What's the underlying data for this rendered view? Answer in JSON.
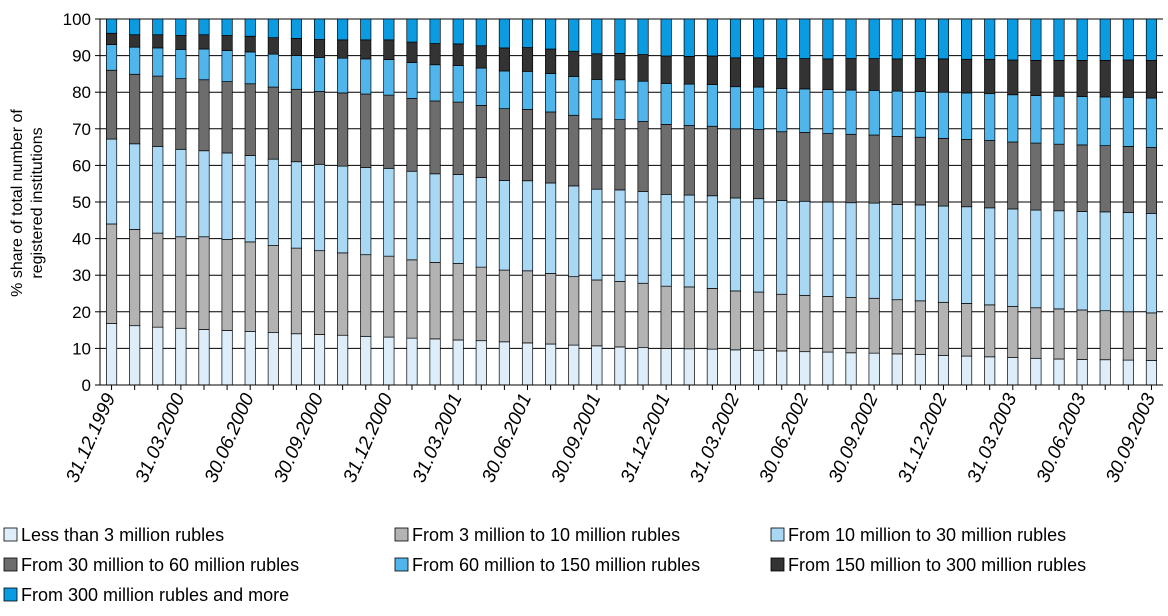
{
  "chart_data": {
    "type": "bar",
    "stacked": true,
    "title": "",
    "ylabel_lines": [
      "% share of total number of",
      "registered institutions"
    ],
    "xlabel": "",
    "ylim": [
      0,
      100
    ],
    "y_ticks": [
      0,
      10,
      20,
      30,
      40,
      50,
      60,
      70,
      80,
      90,
      100
    ],
    "grid": "horizontal",
    "legend_position": "bottom",
    "x_ticks": [
      "31.12.1999",
      "31.03.2000",
      "30.06.2000",
      "30.09.2000",
      "31.12.2000",
      "31.03.2001",
      "30.06.2001",
      "30.09.2001",
      "31.12.2001",
      "31.03.2002",
      "30.06.2002",
      "30.09.2002",
      "31.12.2002",
      "31.03.2003",
      "30.06.2003",
      "30.09.2003"
    ],
    "bar_count": 46,
    "series": [
      {
        "name": "Less than 3 million rubles",
        "color": "#ddeefa",
        "values": [
          16.8,
          16.2,
          15.8,
          15.5,
          15.2,
          14.9,
          14.6,
          14.3,
          14.0,
          13.8,
          13.6,
          13.3,
          13.1,
          12.8,
          12.6,
          12.3,
          12.1,
          11.8,
          11.5,
          11.2,
          10.9,
          10.7,
          10.4,
          10.2,
          10.0,
          9.9,
          9.8,
          9.6,
          9.5,
          9.3,
          9.1,
          9.0,
          8.8,
          8.7,
          8.5,
          8.3,
          8.1,
          7.9,
          7.7,
          7.5,
          7.3,
          7.1,
          7.0,
          6.9,
          6.8,
          6.7
        ]
      },
      {
        "name": "From 3 million to 10 million rubles",
        "color": "#b3b3b3",
        "values": [
          27.2,
          26.3,
          25.7,
          25.0,
          25.3,
          24.9,
          24.5,
          23.8,
          23.4,
          22.9,
          22.5,
          22.3,
          22.1,
          21.4,
          20.9,
          20.9,
          20.1,
          19.6,
          19.7,
          19.3,
          18.7,
          18.0,
          17.9,
          17.6,
          17.0,
          16.9,
          16.6,
          16.1,
          15.9,
          15.5,
          15.4,
          15.2,
          15.1,
          15.0,
          14.8,
          14.7,
          14.5,
          14.4,
          14.2,
          14.0,
          13.8,
          13.7,
          13.5,
          13.4,
          13.2,
          13.0
        ]
      },
      {
        "name": "From 10 million to 30 million rubles",
        "color": "#a9d8f5",
        "values": [
          23.2,
          23.4,
          23.7,
          23.9,
          23.5,
          23.6,
          23.6,
          23.6,
          23.6,
          23.6,
          23.7,
          23.8,
          24.0,
          24.2,
          24.2,
          24.3,
          24.5,
          24.5,
          24.6,
          24.7,
          24.8,
          24.8,
          25.0,
          25.1,
          25.1,
          25.1,
          25.3,
          25.4,
          25.5,
          25.6,
          25.7,
          25.8,
          25.9,
          26.0,
          26.0,
          26.2,
          26.3,
          26.4,
          26.5,
          26.6,
          26.7,
          26.8,
          26.9,
          27.0,
          27.1,
          27.2
        ]
      },
      {
        "name": "From 30 million to 60 million rubles",
        "color": "#6d6d6d",
        "values": [
          18.8,
          19.0,
          19.2,
          19.3,
          19.4,
          19.5,
          19.6,
          19.7,
          19.8,
          19.9,
          20.0,
          20.1,
          20.0,
          19.9,
          19.9,
          19.8,
          19.7,
          19.6,
          19.5,
          19.4,
          19.3,
          19.2,
          19.2,
          19.1,
          19.1,
          19.0,
          19.0,
          18.9,
          18.9,
          18.8,
          18.8,
          18.7,
          18.7,
          18.6,
          18.6,
          18.5,
          18.5,
          18.4,
          18.4,
          18.3,
          18.3,
          18.2,
          18.2,
          18.1,
          18.1,
          18.0
        ]
      },
      {
        "name": "From 60 million to 150 million rubles",
        "color": "#4fb5ea",
        "values": [
          7.0,
          7.4,
          7.7,
          8.0,
          8.4,
          8.5,
          8.7,
          9.0,
          9.2,
          9.3,
          9.5,
          9.6,
          9.7,
          9.8,
          9.9,
          10.0,
          10.2,
          10.3,
          10.4,
          10.5,
          10.6,
          10.8,
          10.9,
          11.0,
          11.2,
          11.3,
          11.4,
          11.5,
          11.6,
          11.8,
          11.9,
          12.0,
          12.1,
          12.2,
          12.4,
          12.5,
          12.6,
          12.7,
          12.8,
          12.9,
          13.0,
          13.1,
          13.2,
          13.3,
          13.4,
          13.5
        ]
      },
      {
        "name": "From 150 million to 300 million rubles",
        "color": "#333333",
        "values": [
          3.1,
          3.4,
          3.6,
          3.8,
          3.9,
          4.1,
          4.3,
          4.5,
          4.7,
          4.9,
          5.0,
          5.2,
          5.4,
          5.6,
          5.8,
          5.9,
          6.1,
          6.3,
          6.5,
          6.7,
          6.9,
          7.0,
          7.2,
          7.3,
          7.5,
          7.6,
          7.8,
          7.9,
          8.0,
          8.2,
          8.3,
          8.4,
          8.6,
          8.7,
          8.8,
          9.0,
          9.1,
          9.2,
          9.4,
          9.5,
          9.6,
          9.8,
          9.9,
          10.0,
          10.2,
          10.3
        ]
      },
      {
        "name": "From 300 million rubles and more",
        "color": "#0a9be1",
        "values": [
          3.9,
          4.3,
          4.3,
          4.5,
          4.3,
          4.5,
          4.7,
          5.1,
          5.3,
          5.6,
          5.7,
          5.7,
          5.7,
          6.3,
          6.7,
          6.8,
          7.3,
          7.9,
          7.8,
          8.2,
          8.8,
          9.5,
          9.4,
          9.7,
          10.1,
          10.2,
          10.1,
          10.6,
          10.6,
          10.8,
          10.8,
          10.9,
          10.8,
          10.8,
          10.9,
          10.8,
          10.9,
          11.0,
          11.0,
          11.2,
          11.3,
          11.3,
          11.3,
          11.3,
          11.2,
          11.3
        ]
      }
    ]
  }
}
